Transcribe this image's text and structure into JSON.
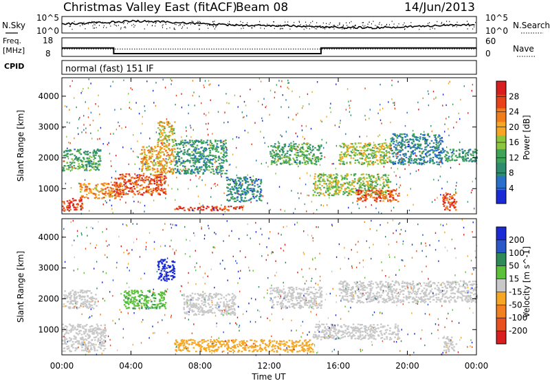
{
  "header": {
    "title": "Christmas Valley East (fitACF)",
    "beam": "Beam 08",
    "date": "14/Jun/2013"
  },
  "strips": {
    "nsky": {
      "label": "N.Sky",
      "ticks": [
        "10^5",
        "10^0"
      ],
      "right_label": "N.Search",
      "right_ticks": [
        "10^5",
        "10^0"
      ]
    },
    "freq": {
      "label_top": "Freq.",
      "label_bottom": "[MHz]",
      "ticks": [
        "18",
        "8"
      ],
      "right_label": "Nave",
      "right_ticks": [
        "60",
        "0"
      ]
    },
    "cpid": {
      "label": "CPID",
      "mode": "normal (fast) 151 IF"
    }
  },
  "colors": {
    "power": [
      "#1a2bd6",
      "#2a6fc9",
      "#2e8b6e",
      "#3fa35a",
      "#8cc63f",
      "#f5a623",
      "#f07d1a",
      "#e8421a",
      "#d81e1e"
    ],
    "velocity": [
      "#1a2bd6",
      "#2a58c9",
      "#2e8b57",
      "#5cc13a",
      "#c8c8c8",
      "#f5a623",
      "#f08020",
      "#e85020",
      "#d81e1e"
    ]
  },
  "chart_data": [
    {
      "type": "heatmap",
      "panel": "power",
      "xlabel": "",
      "ylabel": "Slant Range [km]",
      "ylim": [
        180,
        4600
      ],
      "yticks": [
        "1000",
        "2000",
        "3000",
        "4000"
      ],
      "xlim_hours": [
        0,
        24
      ],
      "colorbar": {
        "label": "Power [dB]",
        "ticks": [
          "4",
          "8",
          "12",
          "16",
          "20",
          "24",
          "28"
        ],
        "range": [
          0,
          32
        ]
      },
      "regions": [
        {
          "t0": 0.0,
          "t1": 1.2,
          "r0": 300,
          "r1": 700,
          "value": 28
        },
        {
          "t0": 0.0,
          "t1": 2.2,
          "r0": 1600,
          "r1": 2300,
          "value": 12
        },
        {
          "t0": 1.0,
          "t1": 3.5,
          "r0": 700,
          "r1": 1200,
          "value": 22
        },
        {
          "t0": 3.0,
          "t1": 6.0,
          "r0": 800,
          "r1": 1500,
          "value": 26
        },
        {
          "t0": 4.5,
          "t1": 6.5,
          "r0": 1500,
          "r1": 2400,
          "value": 20
        },
        {
          "t0": 5.5,
          "t1": 6.5,
          "r0": 2400,
          "r1": 3200,
          "value": 18
        },
        {
          "t0": 6.5,
          "t1": 10.5,
          "r0": 300,
          "r1": 450,
          "value": 28
        },
        {
          "t0": 6.5,
          "t1": 9.5,
          "r0": 1500,
          "r1": 2600,
          "value": 10
        },
        {
          "t0": 9.5,
          "t1": 11.5,
          "r0": 600,
          "r1": 1400,
          "value": 8
        },
        {
          "t0": 12.0,
          "t1": 15.0,
          "r0": 1800,
          "r1": 2500,
          "value": 12
        },
        {
          "t0": 14.5,
          "t1": 19.0,
          "r0": 800,
          "r1": 1500,
          "value": 16
        },
        {
          "t0": 16.0,
          "t1": 19.0,
          "r0": 1800,
          "r1": 2500,
          "value": 16
        },
        {
          "t0": 17.0,
          "t1": 19.5,
          "r0": 600,
          "r1": 1000,
          "value": 26
        },
        {
          "t0": 19.0,
          "t1": 22.0,
          "r0": 1800,
          "r1": 2800,
          "value": 8
        },
        {
          "t0": 22.0,
          "t1": 22.8,
          "r0": 300,
          "r1": 900,
          "value": 26
        },
        {
          "t0": 22.0,
          "t1": 24.0,
          "r0": 1900,
          "r1": 2300,
          "value": 10
        }
      ]
    },
    {
      "type": "heatmap",
      "panel": "velocity",
      "xlabel": "Time UT",
      "ylabel": "Slant Range [km]",
      "ylim": [
        180,
        4600
      ],
      "yticks": [
        "1000",
        "2000",
        "3000",
        "4000"
      ],
      "xticks": [
        "00:00",
        "04:00",
        "08:00",
        "12:00",
        "16:00",
        "20:00",
        "00:00"
      ],
      "xlim_hours": [
        0,
        24
      ],
      "colorbar": {
        "label": "Velocity [m s^-1]",
        "ticks": [
          "200",
          "100",
          "50",
          "15",
          "-15",
          "-50",
          "-100",
          "-200"
        ],
        "range": [
          -250,
          250
        ]
      },
      "regions": [
        {
          "t0": 0.0,
          "t1": 2.5,
          "r0": 300,
          "r1": 1200,
          "value": 0
        },
        {
          "t0": 0.0,
          "t1": 2.0,
          "r0": 1700,
          "r1": 2300,
          "value": 0
        },
        {
          "t0": 3.5,
          "t1": 6.0,
          "r0": 1700,
          "r1": 2300,
          "value": 70
        },
        {
          "t0": 5.5,
          "t1": 6.5,
          "r0": 2600,
          "r1": 3300,
          "value": 220
        },
        {
          "t0": 6.5,
          "t1": 14.5,
          "r0": 300,
          "r1": 700,
          "value": -60
        },
        {
          "t0": 7.0,
          "t1": 10.0,
          "r0": 1500,
          "r1": 2200,
          "value": 0
        },
        {
          "t0": 12.0,
          "t1": 15.0,
          "r0": 1700,
          "r1": 2400,
          "value": 0
        },
        {
          "t0": 14.5,
          "t1": 19.5,
          "r0": 700,
          "r1": 1200,
          "value": 0
        },
        {
          "t0": 16.0,
          "t1": 24.0,
          "r0": 1900,
          "r1": 2600,
          "value": 0
        },
        {
          "t0": 22.0,
          "t1": 22.8,
          "r0": 300,
          "r1": 800,
          "value": 0
        }
      ]
    },
    {
      "type": "line",
      "panel": "nsky-nsearch",
      "series": [
        {
          "name": "N.Sky",
          "x_hours": [
            0,
            2,
            4,
            6,
            8,
            10,
            12,
            14,
            16,
            18,
            20,
            22,
            24
          ],
          "values_norm": [
            0.55,
            0.62,
            0.72,
            0.68,
            0.55,
            0.48,
            0.45,
            0.42,
            0.35,
            0.32,
            0.38,
            0.45,
            0.5
          ]
        }
      ]
    },
    {
      "type": "line",
      "panel": "freq-nave",
      "series": [
        {
          "name": "Freq.",
          "x_hours": [
            0,
            3.0,
            3.0,
            15.0,
            15.0,
            24
          ],
          "values": [
            12.5,
            12.5,
            9.5,
            9.5,
            12.5,
            12.5
          ]
        },
        {
          "name": "Nave",
          "x_hours": [
            0,
            24
          ],
          "values": [
            24,
            24
          ]
        }
      ]
    }
  ]
}
